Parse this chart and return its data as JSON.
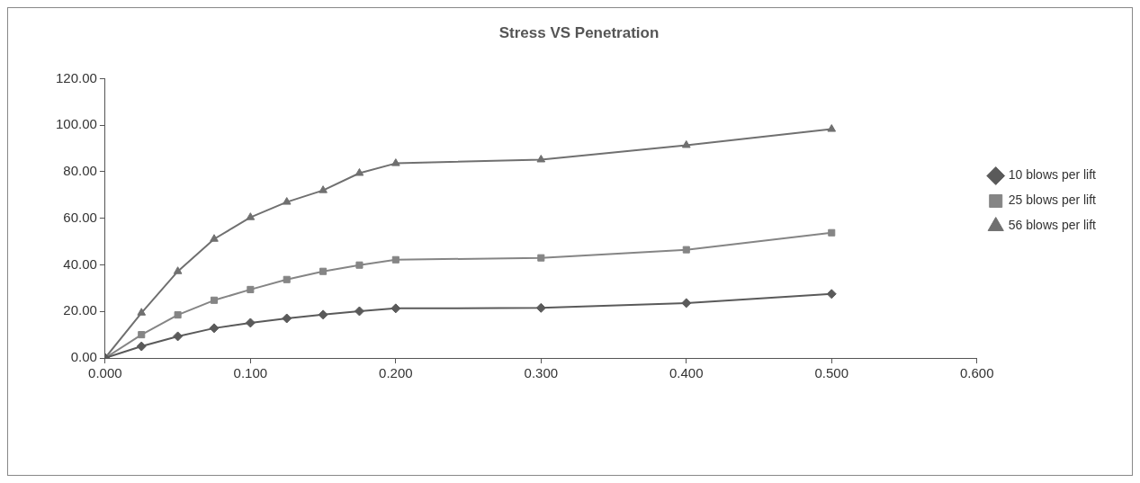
{
  "chart_data": {
    "type": "line",
    "title": "Stress VS Penetration",
    "x": [
      0,
      0.025,
      0.05,
      0.075,
      0.1,
      0.125,
      0.15,
      0.175,
      0.2,
      0.3,
      0.4,
      0.5
    ],
    "series": [
      {
        "name": "10 blows per lift",
        "color": "#5a5a5a",
        "marker": "diamond",
        "values": [
          0,
          5,
          9.3,
          12.8,
          15.1,
          17,
          18.6,
          20.1,
          21.3,
          21.5,
          23.6,
          27.5
        ]
      },
      {
        "name": "25 blows per lift",
        "color": "#858585",
        "marker": "square",
        "values": [
          0,
          10,
          18.5,
          24.8,
          29.4,
          33.7,
          37.2,
          39.9,
          42.2,
          43,
          46.5,
          53.8
        ]
      },
      {
        "name": "56 blows per lift",
        "color": "#707070",
        "marker": "triangle",
        "values": [
          0,
          19.4,
          37.2,
          51.1,
          60.4,
          67,
          72,
          79.4,
          83.6,
          85.2,
          91.4,
          98.3
        ]
      }
    ],
    "xlim": [
      0,
      0.6
    ],
    "xticks": [
      {
        "value": 0,
        "label": "0.000"
      },
      {
        "value": 0.1,
        "label": "0.100"
      },
      {
        "value": 0.2,
        "label": "0.200"
      },
      {
        "value": 0.3,
        "label": "0.300"
      },
      {
        "value": 0.4,
        "label": "0.400"
      },
      {
        "value": 0.5,
        "label": "0.500"
      },
      {
        "value": 0.6,
        "label": "0.600"
      }
    ],
    "ylim": [
      0,
      120
    ],
    "yticks": [
      {
        "value": 0,
        "label": "0.00"
      },
      {
        "value": 20,
        "label": "20.00"
      },
      {
        "value": 40,
        "label": "40.00"
      },
      {
        "value": 60,
        "label": "60.00"
      },
      {
        "value": 80,
        "label": "80.00"
      },
      {
        "value": 100,
        "label": "100.00"
      },
      {
        "value": 120,
        "label": "120.00"
      }
    ],
    "grid": false,
    "legend": "right",
    "line_style": "solid"
  }
}
